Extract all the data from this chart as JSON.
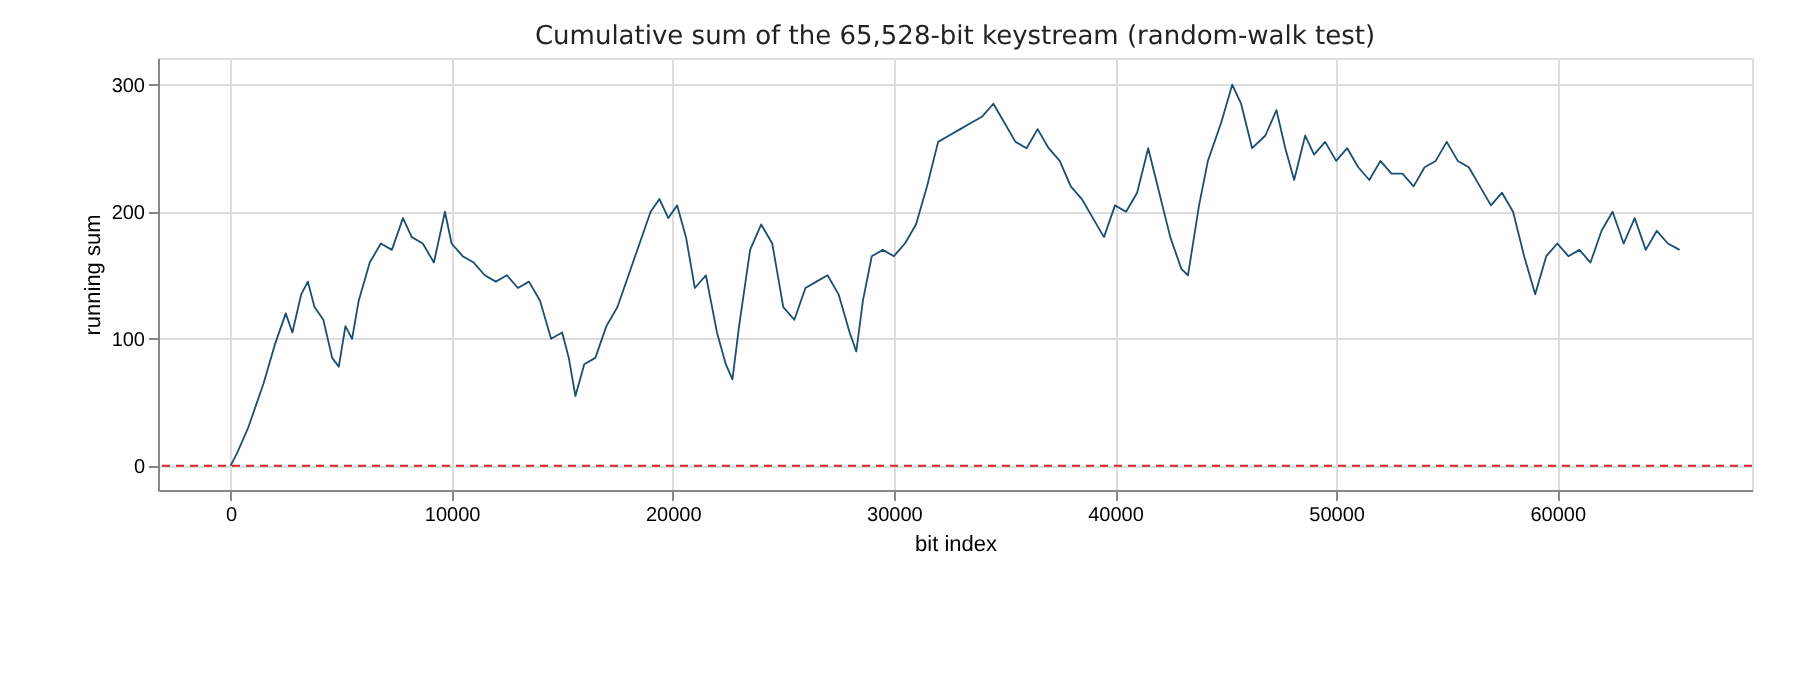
{
  "chart_data": {
    "type": "line",
    "title": "Cumulative sum of the 65,528-bit keystream (random-walk test)",
    "xlabel": "bit index",
    "ylabel": "running sum",
    "x": [
      0,
      300,
      800,
      1500,
      2000,
      2500,
      2800,
      3200,
      3500,
      3800,
      4200,
      4600,
      4900,
      5200,
      5500,
      5800,
      6300,
      6800,
      7300,
      7800,
      8200,
      8700,
      9200,
      9700,
      10000,
      10500,
      11000,
      11500,
      12000,
      12500,
      13000,
      13500,
      14000,
      14500,
      15000,
      15300,
      15600,
      16000,
      16500,
      17000,
      17500,
      18000,
      18500,
      19000,
      19400,
      19800,
      20200,
      20600,
      21000,
      21500,
      22000,
      22400,
      22700,
      23000,
      23500,
      24000,
      24500,
      25000,
      25500,
      26000,
      26500,
      27000,
      27500,
      28000,
      28300,
      28600,
      29000,
      29500,
      30000,
      30500,
      31000,
      31500,
      32000,
      32500,
      33000,
      33500,
      34000,
      34500,
      35000,
      35500,
      36000,
      36500,
      37000,
      37500,
      38000,
      38500,
      39000,
      39500,
      40000,
      40500,
      41000,
      41500,
      42000,
      42500,
      43000,
      43300,
      43800,
      44200,
      44800,
      45300,
      45700,
      46200,
      46800,
      47300,
      47700,
      48100,
      48600,
      49000,
      49500,
      50000,
      50500,
      51000,
      51500,
      52000,
      52500,
      53000,
      53500,
      54000,
      54500,
      55000,
      55500,
      56000,
      56500,
      57000,
      57500,
      58000,
      58500,
      59000,
      59500,
      60000,
      60500,
      61000,
      61500,
      62000,
      62500,
      63000,
      63500,
      64000,
      64500,
      65000,
      65528
    ],
    "series": [
      {
        "color": "#1a4f72",
        "values": [
          0,
          10,
          30,
          65,
          95,
          120,
          105,
          135,
          145,
          125,
          115,
          85,
          78,
          110,
          100,
          130,
          160,
          175,
          170,
          195,
          180,
          175,
          160,
          200,
          175,
          165,
          160,
          150,
          145,
          150,
          140,
          145,
          130,
          100,
          105,
          85,
          55,
          80,
          85,
          110,
          125,
          150,
          175,
          200,
          210,
          195,
          205,
          180,
          140,
          150,
          105,
          80,
          68,
          110,
          170,
          190,
          175,
          125,
          115,
          140,
          145,
          150,
          135,
          105,
          90,
          130,
          165,
          170,
          165,
          175,
          190,
          220,
          255,
          260,
          265,
          270,
          275,
          285,
          270,
          255,
          250,
          265,
          250,
          240,
          220,
          210,
          195,
          180,
          205,
          200,
          215,
          250,
          215,
          180,
          155,
          150,
          205,
          240,
          270,
          300,
          285,
          250,
          260,
          280,
          250,
          225,
          260,
          245,
          255,
          240,
          250,
          235,
          225,
          240,
          230,
          230,
          220,
          235,
          240,
          255,
          240,
          235,
          220,
          205,
          215,
          200,
          165,
          135,
          165,
          175,
          165,
          170,
          160,
          185,
          200,
          175,
          195,
          170,
          185,
          175,
          170
        ]
      }
    ],
    "xlim": [
      -3276,
      68804
    ],
    "xticks": [
      0,
      10000,
      20000,
      30000,
      40000,
      50000,
      60000
    ],
    "ylim": [
      -19,
      321
    ],
    "yticks": [
      0,
      100,
      200,
      300
    ],
    "ref_lines": [
      {
        "axis": "y",
        "value": 0,
        "color": "#d62728",
        "line_style": "dashed"
      }
    ],
    "grid": true,
    "marker": "none",
    "line_style": "solid"
  }
}
